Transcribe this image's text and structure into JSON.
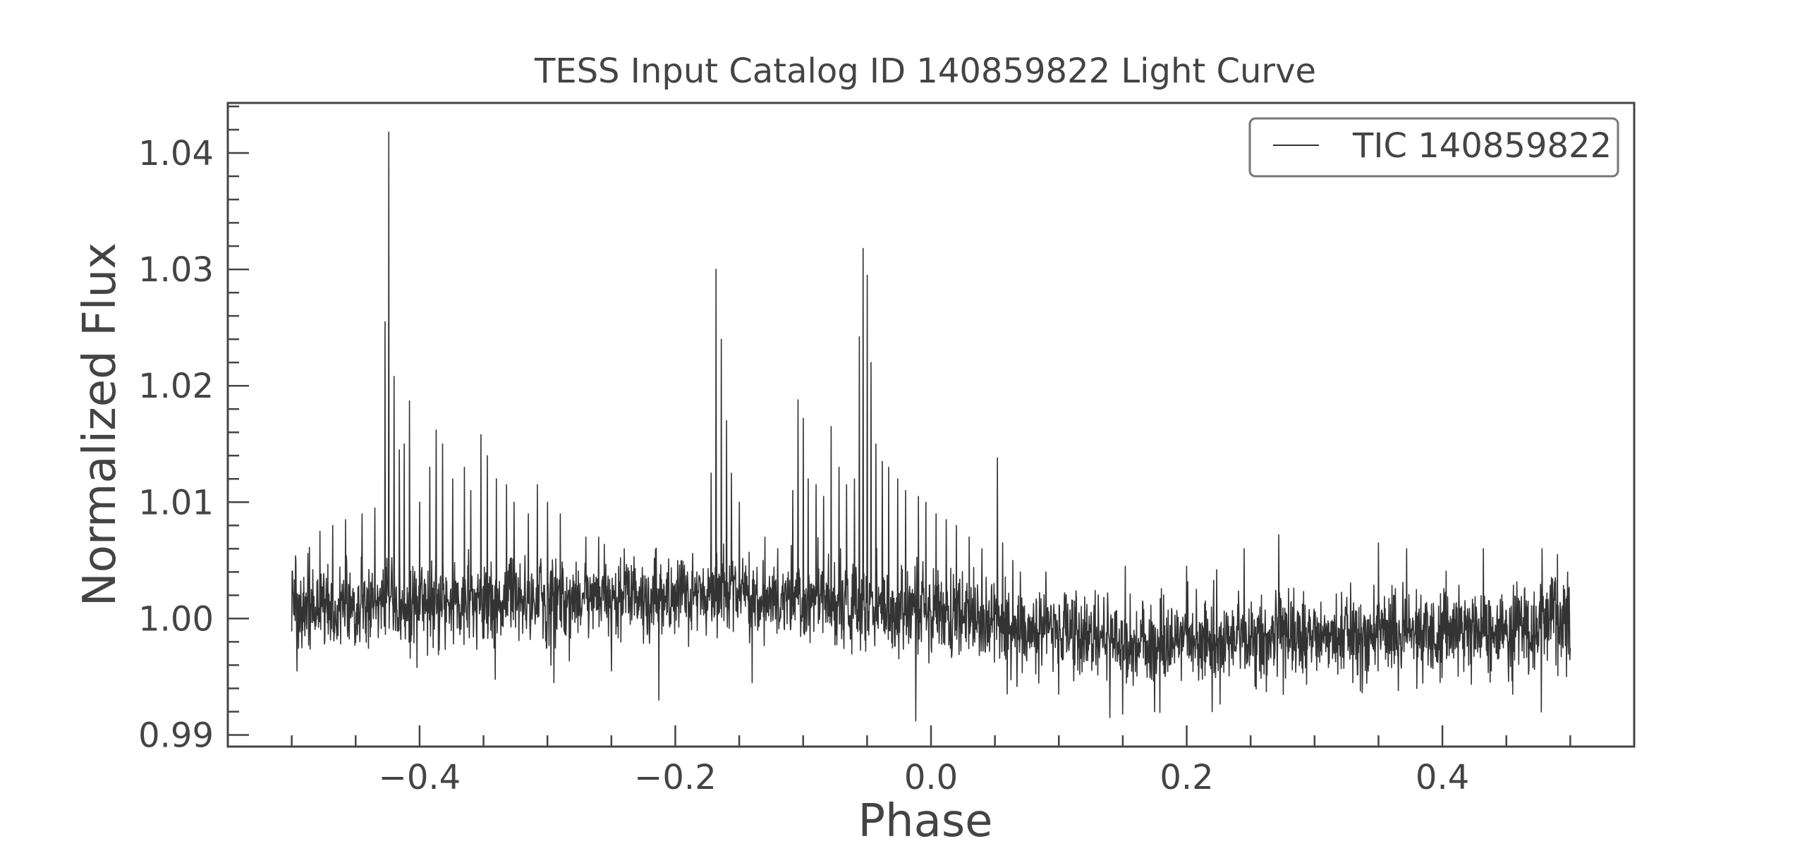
{
  "chart_data": {
    "type": "line",
    "title": "TESS Input Catalog ID 140859822 Light Curve",
    "xlabel": "Phase",
    "ylabel": "Normalized Flux",
    "xlim": [
      -0.55,
      0.55
    ],
    "ylim": [
      0.989,
      1.0443
    ],
    "x_ticks": [
      -0.4,
      -0.2,
      0.0,
      0.2,
      0.4
    ],
    "x_tick_labels": [
      "−0.4",
      "−0.2",
      "0.0",
      "0.2",
      "0.4"
    ],
    "x_minor_step": 0.05,
    "y_ticks": [
      0.99,
      1.0,
      1.01,
      1.02,
      1.03,
      1.04
    ],
    "y_tick_labels": [
      "0.99",
      "1.00",
      "1.01",
      "1.02",
      "1.03",
      "1.04"
    ],
    "y_minor_step": 0.002,
    "grid": false,
    "legend": {
      "position": "top-right",
      "entries": [
        "TIC 140859822"
      ]
    },
    "colors": {
      "line": "#333333",
      "axes": "#444444",
      "legend_border": "#777777"
    },
    "series": [
      {
        "name": "TIC 140859822",
        "x_range": [
          -0.5,
          0.5
        ],
        "n_points": 3400,
        "noise_sigma": 0.0018,
        "baseline": [
          {
            "x": -0.5,
            "y": 1.001
          },
          {
            "x": -0.2,
            "y": 1.002
          },
          {
            "x": -0.1,
            "y": 1.0015
          },
          {
            "x": 0.0,
            "y": 1.0005
          },
          {
            "x": 0.1,
            "y": 0.999
          },
          {
            "x": 0.15,
            "y": 0.998
          },
          {
            "x": 0.3,
            "y": 0.9985
          },
          {
            "x": 0.5,
            "y": 0.9995
          }
        ],
        "flares": [
          {
            "x": -0.478,
            "y": 1.0075
          },
          {
            "x": -0.468,
            "y": 1.008
          },
          {
            "x": -0.458,
            "y": 1.0085
          },
          {
            "x": -0.445,
            "y": 1.009
          },
          {
            "x": -0.435,
            "y": 1.0095
          },
          {
            "x": -0.427,
            "y": 1.0255
          },
          {
            "x": -0.424,
            "y": 1.0418
          },
          {
            "x": -0.42,
            "y": 1.0208
          },
          {
            "x": -0.416,
            "y": 1.0145
          },
          {
            "x": -0.412,
            "y": 1.015
          },
          {
            "x": -0.408,
            "y": 1.0187
          },
          {
            "x": -0.4,
            "y": 1.01
          },
          {
            "x": -0.392,
            "y": 1.013
          },
          {
            "x": -0.387,
            "y": 1.0162
          },
          {
            "x": -0.382,
            "y": 1.015
          },
          {
            "x": -0.374,
            "y": 1.012
          },
          {
            "x": -0.365,
            "y": 1.013
          },
          {
            "x": -0.36,
            "y": 1.011
          },
          {
            "x": -0.352,
            "y": 1.0158
          },
          {
            "x": -0.347,
            "y": 1.014
          },
          {
            "x": -0.34,
            "y": 1.012
          },
          {
            "x": -0.332,
            "y": 1.0115
          },
          {
            "x": -0.326,
            "y": 1.01
          },
          {
            "x": -0.315,
            "y": 1.009
          },
          {
            "x": -0.308,
            "y": 1.0115
          },
          {
            "x": -0.3,
            "y": 1.01
          },
          {
            "x": -0.29,
            "y": 1.009
          },
          {
            "x": -0.27,
            "y": 1.007
          },
          {
            "x": -0.26,
            "y": 1.007
          },
          {
            "x": -0.24,
            "y": 1.006
          },
          {
            "x": -0.172,
            "y": 1.0125
          },
          {
            "x": -0.168,
            "y": 1.03
          },
          {
            "x": -0.164,
            "y": 1.024
          },
          {
            "x": -0.16,
            "y": 1.017
          },
          {
            "x": -0.156,
            "y": 1.0125
          },
          {
            "x": -0.15,
            "y": 1.01
          },
          {
            "x": -0.14,
            "y": 1.008
          },
          {
            "x": -0.13,
            "y": 1.007
          },
          {
            "x": -0.12,
            "y": 1.006
          },
          {
            "x": -0.108,
            "y": 1.011
          },
          {
            "x": -0.104,
            "y": 1.0188
          },
          {
            "x": -0.1,
            "y": 1.0172
          },
          {
            "x": -0.096,
            "y": 1.012
          },
          {
            "x": -0.09,
            "y": 1.0115
          },
          {
            "x": -0.084,
            "y": 1.0105
          },
          {
            "x": -0.078,
            "y": 1.0165
          },
          {
            "x": -0.072,
            "y": 1.013
          },
          {
            "x": -0.066,
            "y": 1.0115
          },
          {
            "x": -0.06,
            "y": 1.012
          },
          {
            "x": -0.056,
            "y": 1.0242
          },
          {
            "x": -0.053,
            "y": 1.0318
          },
          {
            "x": -0.05,
            "y": 1.0295
          },
          {
            "x": -0.047,
            "y": 1.022
          },
          {
            "x": -0.043,
            "y": 1.015
          },
          {
            "x": -0.038,
            "y": 1.0135
          },
          {
            "x": -0.033,
            "y": 1.013
          },
          {
            "x": -0.026,
            "y": 1.012
          },
          {
            "x": -0.02,
            "y": 1.011
          },
          {
            "x": -0.01,
            "y": 1.0105
          },
          {
            "x": -0.004,
            "y": 1.01
          },
          {
            "x": 0.004,
            "y": 1.009
          },
          {
            "x": 0.012,
            "y": 1.0085
          },
          {
            "x": 0.02,
            "y": 1.008
          },
          {
            "x": 0.03,
            "y": 1.007
          },
          {
            "x": 0.04,
            "y": 1.006
          },
          {
            "x": 0.052,
            "y": 1.0138
          },
          {
            "x": 0.056,
            "y": 1.0065
          },
          {
            "x": 0.07,
            "y": 1.004
          },
          {
            "x": 0.09,
            "y": 1.004
          },
          {
            "x": 0.152,
            "y": 1.0045
          },
          {
            "x": 0.2,
            "y": 1.0045
          },
          {
            "x": 0.245,
            "y": 1.006
          },
          {
            "x": 0.272,
            "y": 1.0072
          },
          {
            "x": 0.35,
            "y": 1.0065
          },
          {
            "x": 0.372,
            "y": 1.006
          },
          {
            "x": 0.432,
            "y": 1.006
          },
          {
            "x": 0.455,
            "y": 1.0055
          },
          {
            "x": 0.478,
            "y": 1.006
          },
          {
            "x": 0.49,
            "y": 1.0055
          },
          {
            "x": 0.498,
            "y": 1.004
          }
        ],
        "dips": [
          {
            "x": -0.496,
            "y": 0.9955
          },
          {
            "x": -0.402,
            "y": 0.9958
          },
          {
            "x": -0.295,
            "y": 0.9945
          },
          {
            "x": -0.25,
            "y": 0.9955
          },
          {
            "x": -0.213,
            "y": 0.993
          },
          {
            "x": -0.14,
            "y": 0.9945
          },
          {
            "x": -0.012,
            "y": 0.9912
          },
          {
            "x": 0.1,
            "y": 0.9935
          },
          {
            "x": 0.14,
            "y": 0.9915
          },
          {
            "x": 0.15,
            "y": 0.9918
          },
          {
            "x": 0.175,
            "y": 0.992
          },
          {
            "x": 0.22,
            "y": 0.992
          },
          {
            "x": 0.33,
            "y": 0.9945
          },
          {
            "x": 0.38,
            "y": 0.994
          },
          {
            "x": 0.455,
            "y": 0.9935
          }
        ]
      }
    ]
  }
}
